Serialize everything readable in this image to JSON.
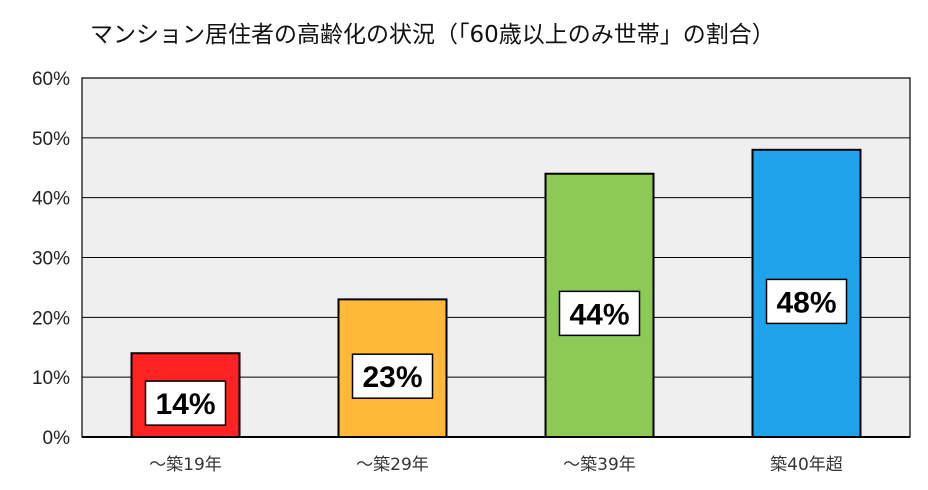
{
  "chart_data": {
    "type": "bar",
    "title": "マンション居住者の高齢化の状況（「60歳以上のみ世帯」の割合）",
    "categories": [
      "～築19年",
      "～築29年",
      "～築39年",
      "築40年超"
    ],
    "values": [
      14,
      23,
      44,
      48
    ],
    "value_labels": [
      "14%",
      "23%",
      "44%",
      "48%"
    ],
    "bar_colors": [
      "#ff2222",
      "#ffb83a",
      "#8dc955",
      "#1fa3ea"
    ],
    "xlabel": "",
    "ylabel": "",
    "ylim": [
      0,
      60
    ],
    "yticks": [
      "0%",
      "10%",
      "20%",
      "30%",
      "40%",
      "50%",
      "60%"
    ],
    "grid": true,
    "plot_background": "#efefef",
    "legend": "none"
  }
}
